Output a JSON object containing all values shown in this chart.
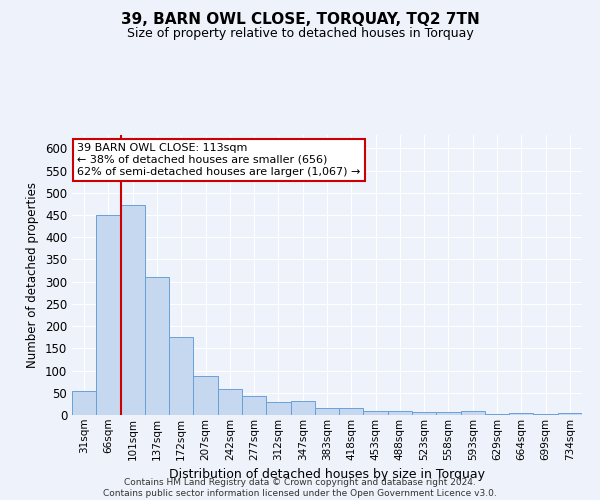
{
  "title": "39, BARN OWL CLOSE, TORQUAY, TQ2 7TN",
  "subtitle": "Size of property relative to detached houses in Torquay",
  "xlabel": "Distribution of detached houses by size in Torquay",
  "ylabel": "Number of detached properties",
  "bar_labels": [
    "31sqm",
    "66sqm",
    "101sqm",
    "137sqm",
    "172sqm",
    "207sqm",
    "242sqm",
    "277sqm",
    "312sqm",
    "347sqm",
    "383sqm",
    "418sqm",
    "453sqm",
    "488sqm",
    "523sqm",
    "558sqm",
    "593sqm",
    "629sqm",
    "664sqm",
    "699sqm",
    "734sqm"
  ],
  "bar_values": [
    54,
    450,
    472,
    311,
    176,
    88,
    59,
    43,
    30,
    32,
    15,
    15,
    10,
    10,
    6,
    6,
    8,
    2,
    4,
    2,
    4
  ],
  "bar_color": "#c5d8f0",
  "bar_edge_color": "#6a9fd8",
  "vline_idx": 2,
  "vline_color": "#cc0000",
  "ylim": [
    0,
    630
  ],
  "yticks": [
    0,
    50,
    100,
    150,
    200,
    250,
    300,
    350,
    400,
    450,
    500,
    550,
    600
  ],
  "annotation_line1": "39 BARN OWL CLOSE: 113sqm",
  "annotation_line2": "← 38% of detached houses are smaller (656)",
  "annotation_line3": "62% of semi-detached houses are larger (1,067) →",
  "annotation_box_color": "#ffffff",
  "annotation_box_edge": "#cc0000",
  "footer_line1": "Contains HM Land Registry data © Crown copyright and database right 2024.",
  "footer_line2": "Contains public sector information licensed under the Open Government Licence v3.0.",
  "background_color": "#eef2fb",
  "grid_color": "#ffffff"
}
